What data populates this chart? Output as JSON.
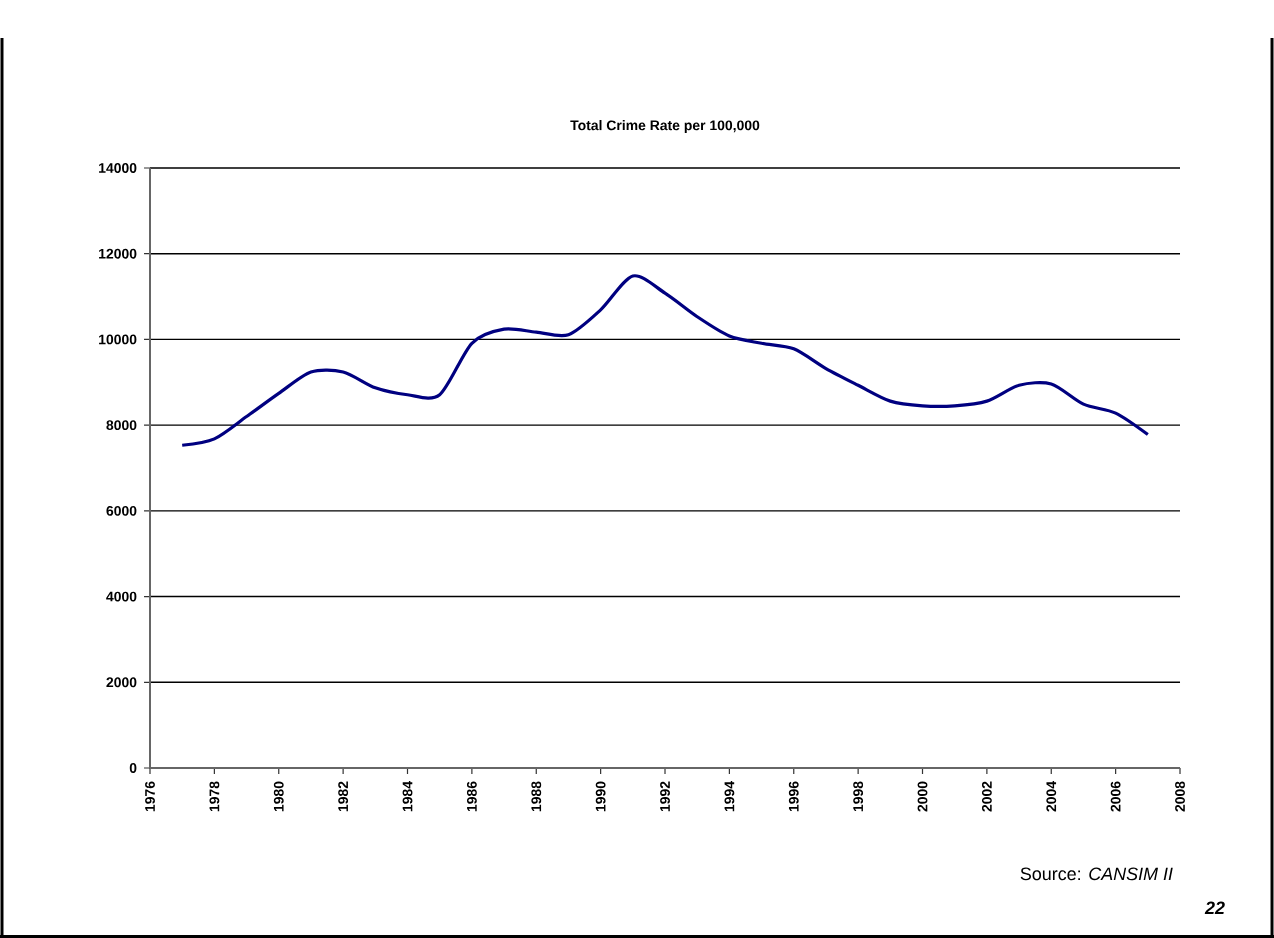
{
  "chart_data": {
    "type": "line",
    "title": "Total Crime Rate per 100,000",
    "x": [
      1977,
      1978,
      1979,
      1980,
      1981,
      1982,
      1983,
      1984,
      1985,
      1986,
      1987,
      1988,
      1989,
      1990,
      1991,
      1992,
      1993,
      1994,
      1995,
      1996,
      1997,
      1998,
      1999,
      2000,
      2001,
      2002,
      2003,
      2004,
      2005,
      2006,
      2007
    ],
    "series": [
      {
        "color": "#000080",
        "values": [
          7530,
          7680,
          8200,
          8740,
          9240,
          9240,
          8870,
          8710,
          8710,
          9910,
          10240,
          10170,
          10110,
          10690,
          11480,
          11080,
          10530,
          10080,
          9910,
          9780,
          9320,
          8930,
          8560,
          8450,
          8450,
          8560,
          8930,
          8960,
          8490,
          8280,
          7780
        ]
      }
    ],
    "xlim": [
      1976,
      2008
    ],
    "xticks": [
      1976,
      1978,
      1980,
      1982,
      1984,
      1986,
      1988,
      1990,
      1992,
      1994,
      1996,
      1998,
      2000,
      2002,
      2004,
      2006,
      2008
    ],
    "ylim": [
      0,
      14000
    ],
    "yticks": [
      0,
      2000,
      4000,
      6000,
      8000,
      10000,
      12000,
      14000
    ],
    "grid": "y",
    "marker": "none",
    "line_style": "solid",
    "annotations": [
      "Source: *CANSIM II*",
      "22"
    ]
  }
}
